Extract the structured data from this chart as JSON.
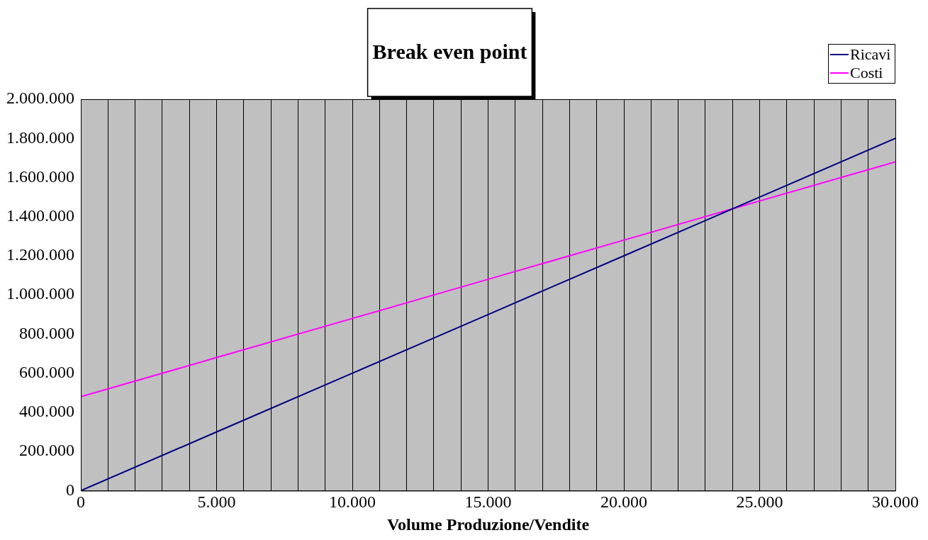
{
  "chart_data": {
    "type": "line",
    "title": "Break even point",
    "xlabel": "Volume Produzione/Vendite",
    "series": [
      {
        "name": "Ricavi",
        "color": "#000080",
        "x": [
          0,
          5000,
          10000,
          15000,
          20000,
          25000,
          30000
        ],
        "values": [
          0,
          300000,
          600000,
          900000,
          1200000,
          1500000,
          1800000
        ]
      },
      {
        "name": "Costi",
        "color": "#ff00ff",
        "x": [
          0,
          5000,
          10000,
          15000,
          20000,
          25000,
          30000
        ],
        "values": [
          480000,
          680000,
          880000,
          1080000,
          1280000,
          1480000,
          1680000
        ]
      }
    ],
    "xlim": [
      0,
      30000
    ],
    "xticks": [
      {
        "value": 0,
        "label": "0"
      },
      {
        "value": 1000,
        "label": null
      },
      {
        "value": 2000,
        "label": null
      },
      {
        "value": 3000,
        "label": null
      },
      {
        "value": 4000,
        "label": null
      },
      {
        "value": 5000,
        "label": "5.000"
      },
      {
        "value": 6000,
        "label": null
      },
      {
        "value": 7000,
        "label": null
      },
      {
        "value": 8000,
        "label": null
      },
      {
        "value": 9000,
        "label": null
      },
      {
        "value": 10000,
        "label": "10.000"
      },
      {
        "value": 11000,
        "label": null
      },
      {
        "value": 12000,
        "label": null
      },
      {
        "value": 13000,
        "label": null
      },
      {
        "value": 14000,
        "label": null
      },
      {
        "value": 15000,
        "label": "15.000"
      },
      {
        "value": 16000,
        "label": null
      },
      {
        "value": 17000,
        "label": null
      },
      {
        "value": 18000,
        "label": null
      },
      {
        "value": 19000,
        "label": null
      },
      {
        "value": 20000,
        "label": "20.000"
      },
      {
        "value": 21000,
        "label": null
      },
      {
        "value": 22000,
        "label": null
      },
      {
        "value": 23000,
        "label": null
      },
      {
        "value": 24000,
        "label": null
      },
      {
        "value": 25000,
        "label": "25.000"
      },
      {
        "value": 26000,
        "label": null
      },
      {
        "value": 27000,
        "label": null
      },
      {
        "value": 28000,
        "label": null
      },
      {
        "value": 29000,
        "label": null
      },
      {
        "value": 30000,
        "label": "30.000"
      }
    ],
    "ylim": [
      0,
      2000000
    ],
    "yticks": [
      {
        "value": 0,
        "label": "0"
      },
      {
        "value": 200000,
        "label": "200.000"
      },
      {
        "value": 400000,
        "label": "400.000"
      },
      {
        "value": 600000,
        "label": "600.000"
      },
      {
        "value": 800000,
        "label": "800.000"
      },
      {
        "value": 1000000,
        "label": "1.000.000"
      },
      {
        "value": 1200000,
        "label": "1.200.000"
      },
      {
        "value": 1400000,
        "label": "1.400.000"
      },
      {
        "value": 1600000,
        "label": "1.600.000"
      },
      {
        "value": 1800000,
        "label": "1.800.000"
      },
      {
        "value": 2000000,
        "label": "2.000.000"
      }
    ],
    "grid": "x",
    "legend": "top right",
    "marker": "none",
    "line_style": "solid"
  }
}
